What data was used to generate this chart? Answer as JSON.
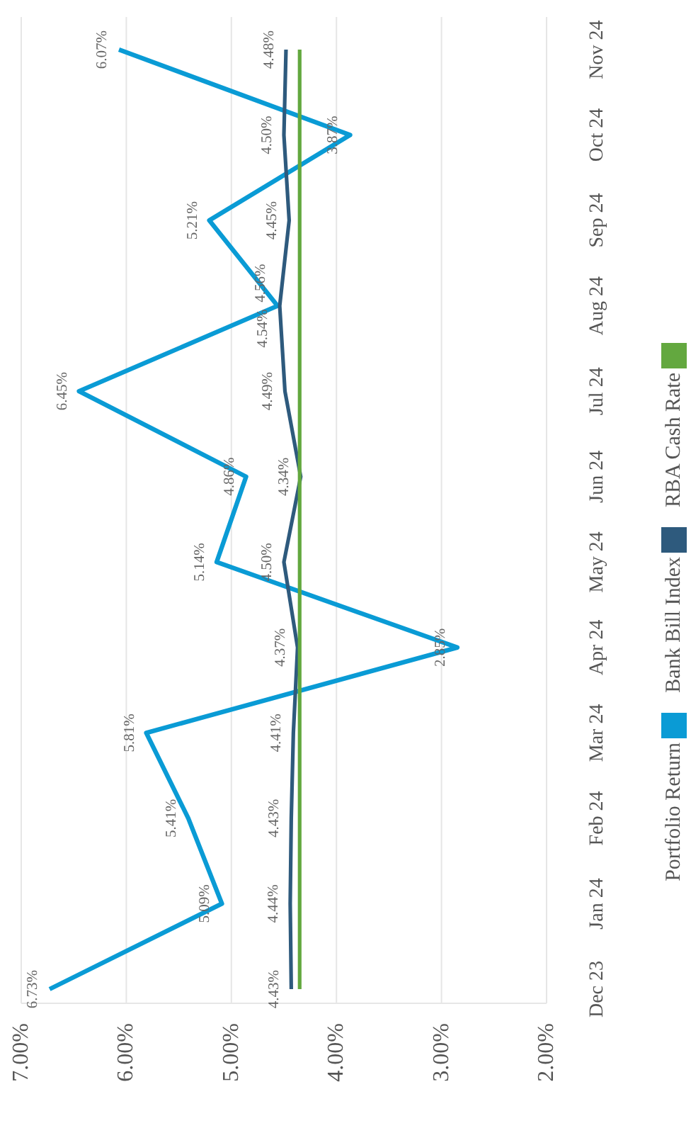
{
  "chart_data": {
    "type": "line",
    "orientation": "horizontal",
    "categories": [
      "Nov 24",
      "Oct 24",
      "Sep 24",
      "Aug 24",
      "Jul 24",
      "Jun 24",
      "May 24",
      "Apr 24",
      "Mar 24",
      "Feb 24",
      "Jan 24",
      "Dec 23"
    ],
    "series": [
      {
        "name": "Portfolio Return",
        "color": "#0a9bd5",
        "values": [
          6.07,
          3.87,
          5.21,
          4.56,
          6.45,
          4.86,
          5.14,
          2.85,
          5.81,
          5.41,
          5.09,
          6.73
        ],
        "value_labels": [
          "6.07%",
          "3.87%",
          "5.21%",
          "4.56%",
          "6.45%",
          "4.86%",
          "5.14%",
          "2.85%",
          "5.81%",
          "5.41%",
          "5.09%",
          "6.73%"
        ]
      },
      {
        "name": "Bank Bill Index",
        "color": "#2e5a7d",
        "values": [
          4.48,
          4.5,
          4.45,
          4.54,
          4.49,
          4.34,
          4.5,
          4.37,
          4.41,
          4.43,
          4.44,
          4.43
        ],
        "value_labels": [
          "4.48%",
          "4.50%",
          "4.45%",
          "4.54%",
          "4.49%",
          "4.34%",
          "4.50%",
          "4.37%",
          "4.41%",
          "4.43%",
          "4.44%",
          "4.43%"
        ]
      },
      {
        "name": "RBA Cash Rate",
        "color": "#63a83f",
        "values": [
          4.35,
          4.35,
          4.35,
          4.35,
          4.35,
          4.35,
          4.35,
          4.35,
          4.35,
          4.35,
          4.35,
          4.35
        ]
      }
    ],
    "xlim": [
      7,
      2
    ],
    "xticks": [
      {
        "value": 7,
        "label": "7.00%"
      },
      {
        "value": 6,
        "label": "6.00%"
      },
      {
        "value": 5,
        "label": "5.00%"
      },
      {
        "value": 4,
        "label": "4.00%"
      },
      {
        "value": 3,
        "label": "3.00%"
      },
      {
        "value": 2,
        "label": "2.00%"
      }
    ],
    "grid": "x",
    "legend": "right",
    "marker": "none",
    "line_style": "solid"
  }
}
